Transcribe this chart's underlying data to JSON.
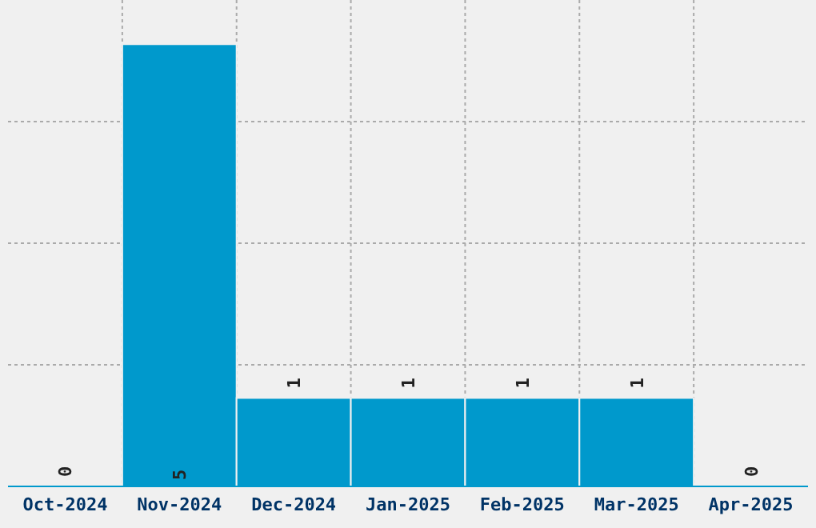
{
  "chart_data": {
    "type": "bar",
    "categories": [
      "Oct-2024",
      "Nov-2024",
      "Dec-2024",
      "Jan-2025",
      "Feb-2025",
      "Mar-2025",
      "Apr-2025"
    ],
    "values": [
      0,
      5,
      1,
      1,
      1,
      1,
      0
    ],
    "color": "#0099cc",
    "ylim": [
      0,
      5.5
    ],
    "yticks": [
      {
        "value": 1.375,
        "label": null
      },
      {
        "value": 2.75,
        "label": null
      },
      {
        "value": 4.125,
        "label": null
      }
    ],
    "tick_labels": "x",
    "grid": true,
    "data_labels": true
  }
}
